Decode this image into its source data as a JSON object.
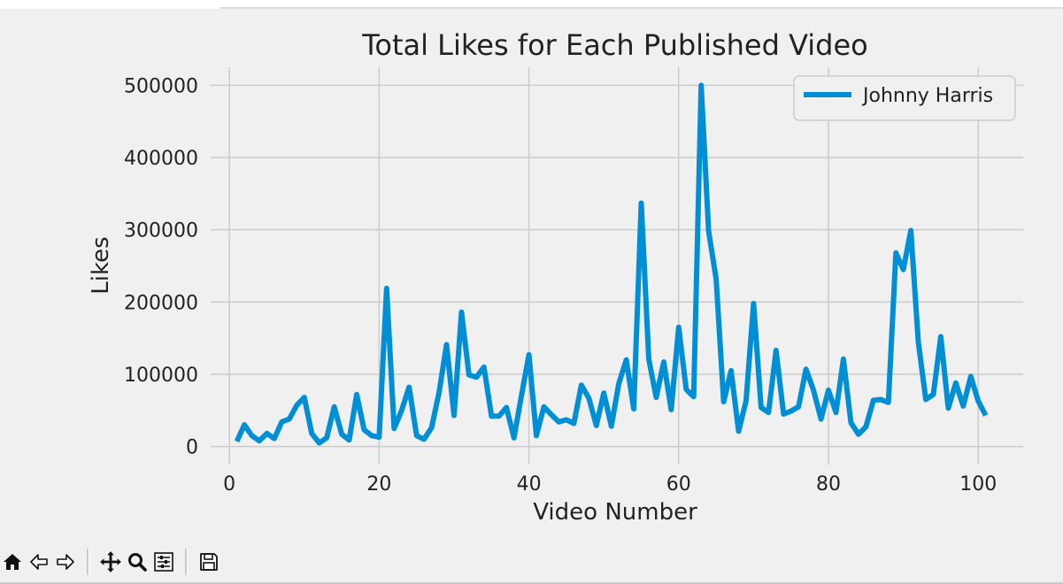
{
  "chart_data": {
    "type": "line",
    "title": "Total Likes for Each Published Video",
    "xlabel": "Video Number",
    "ylabel": "Likes",
    "xlim": [
      -2.5,
      106
    ],
    "ylim": [
      -25000,
      525000
    ],
    "xticks": [
      0,
      20,
      40,
      60,
      80,
      100
    ],
    "yticks": [
      0,
      100000,
      200000,
      300000,
      400000,
      500000
    ],
    "grid": true,
    "legend": "top-right",
    "series": [
      {
        "name": "Johnny Harris",
        "color": "#008fd5",
        "x": [
          1,
          2,
          3,
          4,
          5,
          6,
          7,
          8,
          9,
          10,
          11,
          12,
          13,
          14,
          15,
          16,
          17,
          18,
          19,
          20,
          21,
          22,
          23,
          24,
          25,
          26,
          27,
          28,
          29,
          30,
          31,
          32,
          33,
          34,
          35,
          36,
          37,
          38,
          39,
          40,
          41,
          42,
          43,
          44,
          45,
          46,
          47,
          48,
          49,
          50,
          51,
          52,
          53,
          54,
          55,
          56,
          57,
          58,
          59,
          60,
          61,
          62,
          63,
          64,
          65,
          66,
          67,
          68,
          69,
          70,
          71,
          72,
          73,
          74,
          75,
          76,
          77,
          78,
          79,
          80,
          81,
          82,
          83,
          84,
          85,
          86,
          87,
          88,
          89,
          90,
          91,
          92,
          93,
          94,
          95,
          96,
          97,
          98,
          99,
          100,
          101
        ],
        "values": [
          7000,
          30000,
          15000,
          8000,
          18000,
          11000,
          34000,
          38000,
          57000,
          68000,
          18000,
          5000,
          12000,
          55000,
          17000,
          9000,
          72000,
          23000,
          15000,
          13000,
          219000,
          25000,
          50000,
          82000,
          15000,
          10000,
          26000,
          75000,
          141000,
          43000,
          186000,
          99000,
          96000,
          110000,
          42000,
          42000,
          54000,
          12000,
          70000,
          127000,
          15000,
          55000,
          44000,
          34000,
          37000,
          32000,
          85000,
          67000,
          29000,
          74000,
          28000,
          87000,
          120000,
          52000,
          337000,
          121000,
          68000,
          117000,
          51000,
          165000,
          79000,
          69000,
          500000,
          298000,
          232000,
          62000,
          105000,
          21000,
          63000,
          198000,
          54000,
          47000,
          133000,
          45000,
          49000,
          55000,
          107000,
          78000,
          38000,
          78000,
          47000,
          121000,
          33000,
          17000,
          27000,
          64000,
          65000,
          61000,
          268000,
          245000,
          299000,
          145000,
          65000,
          72000,
          152000,
          53000,
          88000,
          56000,
          97000,
          63000,
          43000
        ]
      }
    ]
  },
  "toolbar": {
    "buttons": [
      {
        "name": "home-button",
        "icon": "home-icon"
      },
      {
        "name": "back-button",
        "icon": "arrow-left-icon"
      },
      {
        "name": "forward-button",
        "icon": "arrow-right-icon"
      },
      {
        "name": "pan-button",
        "icon": "move-icon"
      },
      {
        "name": "zoom-button",
        "icon": "magnifier-icon"
      },
      {
        "name": "configure-subplots-button",
        "icon": "sliders-icon"
      },
      {
        "name": "save-button",
        "icon": "floppy-disk-icon"
      }
    ]
  }
}
